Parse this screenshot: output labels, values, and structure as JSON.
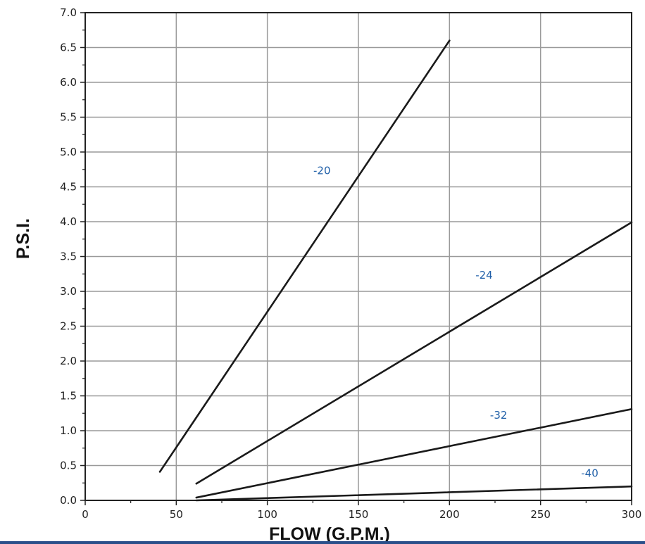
{
  "chart_data": {
    "type": "line",
    "title": "",
    "xlabel": "FLOW (G.P.M.)",
    "ylabel": "P.S.I.",
    "xlim": [
      0,
      300
    ],
    "ylim": [
      0,
      7.0
    ],
    "x_ticks": [
      "0",
      "50",
      "100",
      "150",
      "200",
      "250",
      "300"
    ],
    "y_ticks": [
      "0.0",
      "0.5",
      "1.0",
      "1.5",
      "2.0",
      "2.5",
      "3.0",
      "3.5",
      "4.0",
      "4.5",
      "5.0",
      "5.5",
      "6.0",
      "6.5",
      "7.0"
    ],
    "grid": true,
    "series": [
      {
        "name": "-20",
        "x": [
          41,
          200
        ],
        "y": [
          0.41,
          6.6
        ],
        "label_at": [
          130,
          4.68
        ]
      },
      {
        "name": "-24",
        "x": [
          61,
          300
        ],
        "y": [
          0.24,
          3.99
        ],
        "label_at": [
          219,
          3.18
        ]
      },
      {
        "name": "-32",
        "x": [
          61,
          300
        ],
        "y": [
          0.04,
          1.31
        ],
        "label_at": [
          227,
          1.17
        ]
      },
      {
        "name": "-40",
        "x": [
          61,
          300
        ],
        "y": [
          -0.02,
          0.2
        ],
        "label_at": [
          277,
          0.34
        ]
      }
    ],
    "colors": {
      "grid": "#9a9a9a",
      "line": "#1a1a1a",
      "series_label": "#1f5fa8",
      "bottom_band": "#2b4f8a"
    }
  }
}
